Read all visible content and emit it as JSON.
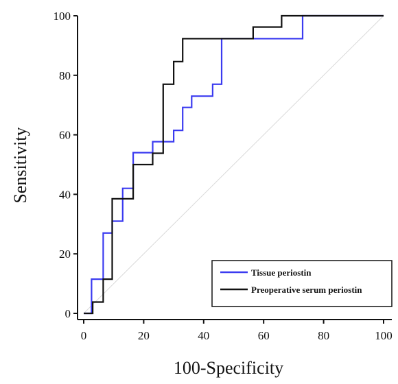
{
  "chart_data": {
    "type": "line",
    "title": "",
    "xlabel": "100-Specificity",
    "ylabel": "Sensitivity",
    "xlim": [
      0,
      100
    ],
    "ylim": [
      0,
      100
    ],
    "xticks": [
      0,
      20,
      40,
      60,
      80,
      100
    ],
    "yticks": [
      0,
      20,
      40,
      60,
      80,
      100
    ],
    "xtick_labels": [
      "0",
      "20",
      "40",
      "60",
      "80",
      "100"
    ],
    "ytick_labels": [
      "0",
      "20",
      "40",
      "60",
      "80",
      "100"
    ],
    "grid": false,
    "legend_position": "bottom-right",
    "reference_line": {
      "x": [
        0,
        100
      ],
      "y": [
        0,
        100
      ],
      "color": "#d9d9d9"
    },
    "series": [
      {
        "name": "Tissue periostin",
        "color": "#3b3bf0",
        "x": [
          0,
          2.6,
          2.6,
          6.5,
          6.5,
          9.5,
          9.5,
          13,
          13,
          16.5,
          16.5,
          23,
          23,
          30,
          30,
          33,
          33,
          36,
          36,
          43,
          43,
          46,
          46,
          56,
          56,
          73,
          73,
          100
        ],
        "y": [
          0,
          0,
          11.5,
          11.5,
          27,
          27,
          31,
          31,
          42,
          42,
          54,
          54,
          57.7,
          57.7,
          61.5,
          61.5,
          69.2,
          69.2,
          73,
          73,
          77,
          77,
          92.3,
          92.3,
          92.3,
          92.3,
          100,
          100
        ]
      },
      {
        "name": "Preoperative serum periostin",
        "color": "#111111",
        "x": [
          0,
          3,
          3,
          6.5,
          6.5,
          9.5,
          9.5,
          13,
          13,
          16.5,
          16.5,
          23,
          23,
          26.5,
          26.5,
          30,
          30,
          33,
          33,
          56.5,
          56.5,
          66,
          66,
          100
        ],
        "y": [
          0,
          0,
          3.8,
          3.8,
          11.5,
          11.5,
          38.5,
          38.5,
          38.5,
          38.5,
          50,
          50,
          53.8,
          53.8,
          77,
          77,
          84.6,
          84.6,
          92.3,
          92.3,
          96.2,
          96.2,
          100,
          100
        ]
      }
    ]
  }
}
